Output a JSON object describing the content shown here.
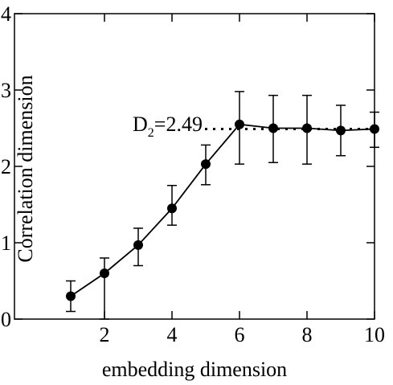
{
  "chart_data": {
    "type": "line",
    "x_label": "embedding dimension",
    "y_label": "Correlation dimension",
    "x": [
      1,
      2,
      3,
      4,
      5,
      6,
      7,
      8,
      9,
      10
    ],
    "series": [
      {
        "color": "#000000",
        "values": [
          0.3,
          0.6,
          0.97,
          1.45,
          2.03,
          2.55,
          2.5,
          2.5,
          2.47,
          2.49
        ],
        "error_low": [
          0.2,
          0.6,
          0.27,
          0.22,
          0.27,
          0.52,
          0.45,
          0.47,
          0.33,
          0.24
        ],
        "error_high": [
          0.2,
          0.2,
          0.22,
          0.3,
          0.25,
          0.43,
          0.43,
          0.43,
          0.33,
          0.22
        ]
      }
    ],
    "annotation": {
      "symbol": "D",
      "subscript": "2",
      "rest": "=2.49"
    },
    "reference_line": 2.49,
    "xlim": [
      1,
      10
    ],
    "xticks": [
      2,
      4,
      6,
      8,
      10
    ],
    "ylim": [
      0,
      4
    ],
    "yticks": [
      0,
      1,
      2,
      3,
      4
    ]
  }
}
